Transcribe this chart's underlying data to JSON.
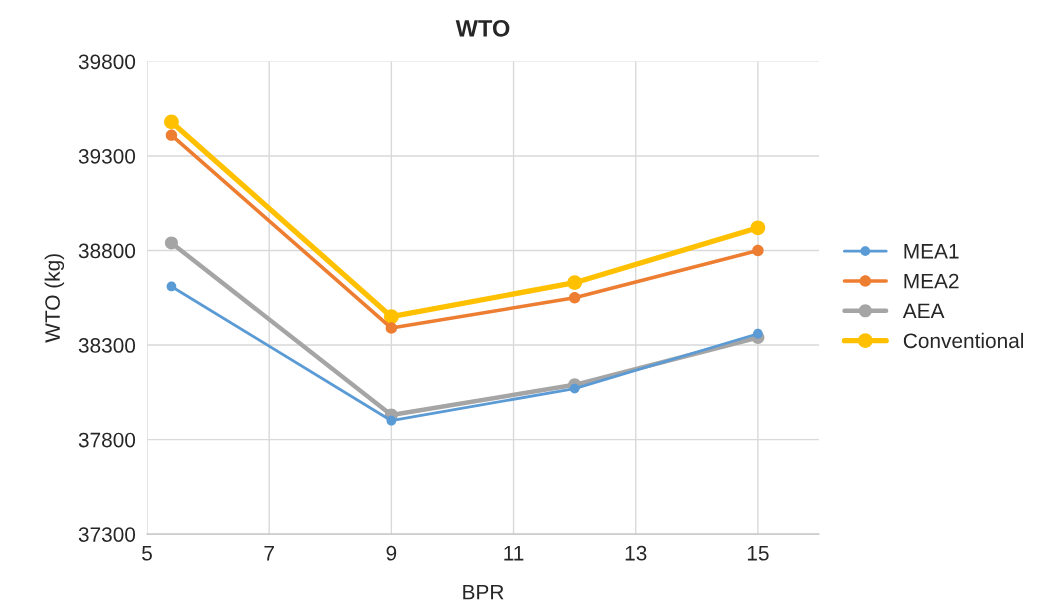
{
  "chart_data": {
    "type": "line",
    "title": "WTO",
    "xlabel": "BPR",
    "ylabel": "WTO (kg)",
    "x": [
      5.4,
      9,
      12,
      15
    ],
    "series": [
      {
        "name": "MEA1",
        "color": "#5b9bd5",
        "values": [
          38610,
          37900,
          38070,
          38360
        ]
      },
      {
        "name": "MEA2",
        "color": "#ed7d31",
        "values": [
          39410,
          38390,
          38550,
          38800
        ]
      },
      {
        "name": "AEA",
        "color": "#a5a5a5",
        "values": [
          38840,
          37930,
          38090,
          38340
        ]
      },
      {
        "name": "Conventional",
        "color": "#ffc000",
        "values": [
          39480,
          38450,
          38630,
          38920
        ]
      }
    ],
    "xlim": [
      5,
      16
    ],
    "xticks": [
      5,
      7,
      9,
      11,
      13,
      15
    ],
    "ylim": [
      37300,
      39800
    ],
    "yticks": [
      37300,
      37800,
      38300,
      38800,
      39300,
      39800
    ],
    "grid": true,
    "legend": "right",
    "marker": "circle",
    "line_style": "solid"
  }
}
